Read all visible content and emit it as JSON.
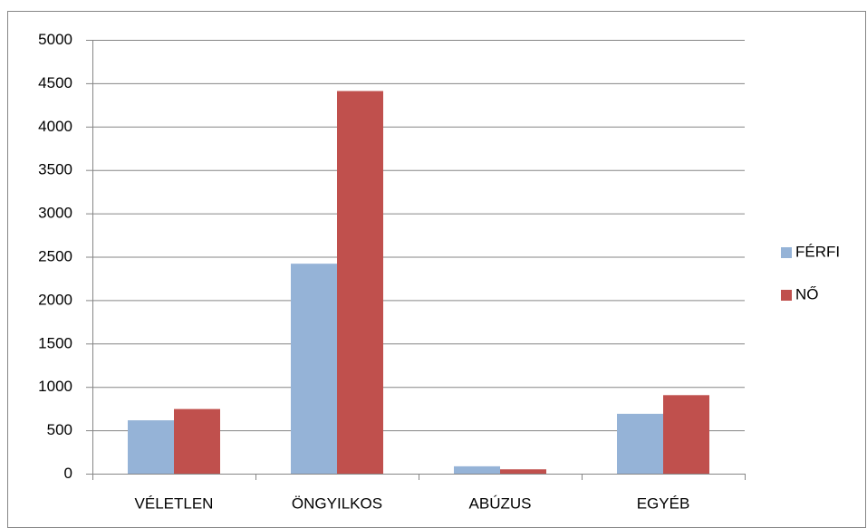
{
  "chart_data": {
    "type": "bar",
    "categories": [
      "VÉLETLEN",
      "ÖNGYILKOS",
      "ABÚZUS",
      "EGYÉB"
    ],
    "series": [
      {
        "name": "FÉRFI",
        "color": "#95b3d7",
        "values": [
          615,
          2420,
          85,
          690
        ]
      },
      {
        "name": "NŐ",
        "color": "#c0504d",
        "values": [
          745,
          4410,
          50,
          905
        ]
      }
    ],
    "ylim": [
      0,
      5000
    ],
    "yticks": [
      0,
      500,
      1000,
      1500,
      2000,
      2500,
      3000,
      3500,
      4000,
      4500,
      5000
    ],
    "grid": true,
    "legend": "right"
  }
}
